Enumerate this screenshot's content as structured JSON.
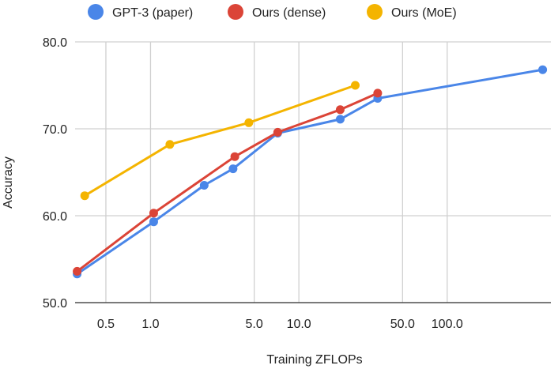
{
  "chart_data": {
    "type": "line",
    "title": "",
    "xlabel": "Training ZFLOPs",
    "ylabel": "Accuracy",
    "x_scale": "log",
    "xlim": [
      0.31,
      500
    ],
    "ylim": [
      50,
      80
    ],
    "x_ticks": [
      {
        "value": 0.5,
        "label": "0.5"
      },
      {
        "value": 1,
        "label": "1.0"
      },
      {
        "value": 5,
        "label": "5.0"
      },
      {
        "value": 10,
        "label": "10.0"
      },
      {
        "value": 50,
        "label": "50.0"
      },
      {
        "value": 100,
        "label": "100.0"
      }
    ],
    "x_gridlines": [
      0.5,
      1,
      5,
      10,
      50,
      100
    ],
    "y_ticks": [
      {
        "value": 50,
        "label": "50.0"
      },
      {
        "value": 60,
        "label": "60.0"
      },
      {
        "value": 70,
        "label": "70.0"
      },
      {
        "value": 80,
        "label": "80.0"
      }
    ],
    "grid": true,
    "legend_position": "top",
    "series": [
      {
        "name": "GPT-3 (paper)",
        "color": "#4a86e8",
        "x": [
          0.32,
          1.05,
          2.3,
          3.6,
          7.2,
          19,
          34,
          440
        ],
        "y": [
          53.3,
          59.3,
          63.5,
          65.4,
          69.5,
          71.1,
          73.5,
          76.8
        ]
      },
      {
        "name": "Ours (dense)",
        "color": "#db4437",
        "x": [
          0.32,
          1.05,
          3.7,
          7.2,
          19,
          34
        ],
        "y": [
          53.6,
          60.3,
          66.8,
          69.6,
          72.2,
          74.1
        ]
      },
      {
        "name": "Ours (MoE)",
        "color": "#f4b400",
        "x": [
          0.36,
          1.35,
          4.6,
          24
        ],
        "y": [
          62.3,
          68.2,
          70.7,
          75.0
        ]
      }
    ]
  }
}
